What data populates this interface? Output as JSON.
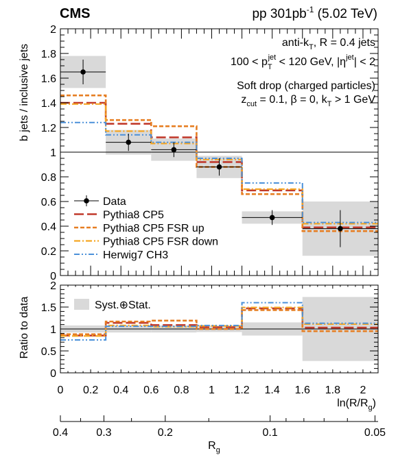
{
  "header": {
    "experiment": "CMS",
    "energy_prefix": "pp 301",
    "energy_unit": "pb",
    "energy_exp": "-1",
    "energy_suffix": " (5.02 TeV)"
  },
  "annotations": {
    "line1": "anti-k",
    "line1_sub": "T",
    "line1_rest": ", R = 0.4 jets",
    "line2_a": "100 < p",
    "line2_sub": "T",
    "line2_sup": "jet",
    "line2_b": " < 120 GeV, |η",
    "line2_sup2": "jet",
    "line2_c": "| < 2",
    "line3": "Soft drop (charged particles)",
    "line4_a": "z",
    "line4_sub": "cut",
    "line4_b": " = 0.1, β = 0, k",
    "line4_sub2": "T",
    "line4_c": " > 1 GeV"
  },
  "colors": {
    "data": "#000000",
    "pythia": "#c0392b",
    "fsr_up": "#e67e22",
    "fsr_down": "#f5a623",
    "herwig": "#4a90d9",
    "syst_band": "#d9d9d9"
  },
  "chart_data": [
    {
      "type": "step",
      "panel": "main",
      "ylabel": "b jets / inclusive jets",
      "ylim": [
        0,
        2
      ],
      "yticks": [
        "0",
        "0.2",
        "0.4",
        "0.6",
        "0.8",
        "1",
        "1.2",
        "1.4",
        "1.6",
        "1.8",
        "2"
      ],
      "bin_edges": [
        0,
        0.3,
        0.6,
        0.9,
        1.2,
        1.6,
        2.1
      ],
      "reference_line": 1,
      "series": [
        {
          "name": "Data",
          "x": [
            0.15,
            0.45,
            0.75,
            1.05,
            1.4,
            1.85
          ],
          "values": [
            1.65,
            1.08,
            1.02,
            0.88,
            0.47,
            0.38
          ],
          "stat_err": [
            0.1,
            0.07,
            0.06,
            0.07,
            0.06,
            0.15
          ],
          "syst_err": [
            0.13,
            0.1,
            0.09,
            0.09,
            0.05,
            0.22
          ]
        },
        {
          "name": "Pythia8 CP5",
          "values": [
            1.4,
            1.23,
            1.12,
            0.92,
            0.69,
            0.39
          ]
        },
        {
          "name": "Pythia8 CP5 FSR up",
          "values": [
            1.46,
            1.26,
            1.21,
            0.88,
            0.66,
            0.36
          ]
        },
        {
          "name": "Pythia8 CP5 FSR down",
          "values": [
            1.39,
            1.17,
            1.07,
            0.94,
            0.7,
            0.42
          ]
        },
        {
          "name": "Herwig7 CH3",
          "values": [
            1.24,
            1.14,
            1.08,
            0.95,
            0.75,
            0.43
          ]
        }
      ],
      "legend": [
        "Data",
        "Pythia8 CP5",
        "Pythia8 CP5 FSR up",
        "Pythia8 CP5 FSR down",
        "Herwig7 CH3"
      ]
    },
    {
      "type": "step",
      "panel": "ratio",
      "ylabel": "Ratio to data",
      "ylim": [
        0,
        2
      ],
      "yticks": [
        "0",
        "0.5",
        "1",
        "1.5",
        "2"
      ],
      "bin_edges": [
        0,
        0.3,
        0.6,
        0.9,
        1.2,
        1.6,
        2.1
      ],
      "reference_line": 1,
      "band_label": "Syst.⊕Stat.",
      "band_half_width": [
        0.08,
        0.08,
        0.08,
        0.07,
        0.15,
        0.73
      ],
      "series": [
        {
          "name": "Pythia8 CP5",
          "values": [
            0.85,
            1.14,
            1.09,
            1.04,
            1.47,
            1.03
          ]
        },
        {
          "name": "Pythia8 CP5 FSR up",
          "values": [
            0.88,
            1.17,
            1.19,
            1.0,
            1.43,
            0.95
          ]
        },
        {
          "name": "Pythia8 CP5 FSR down",
          "values": [
            0.84,
            1.08,
            1.05,
            1.07,
            1.49,
            1.11
          ]
        },
        {
          "name": "Herwig7 CH3",
          "values": [
            0.75,
            1.06,
            1.06,
            1.08,
            1.6,
            1.13
          ]
        }
      ],
      "xlabel": "ln(R/R",
      "xlabel_sub": "g",
      "xlabel_end": ")",
      "xlim": [
        0,
        2.1
      ],
      "xticks": [
        "0",
        "0.2",
        "0.4",
        "0.6",
        "0.8",
        "1",
        "1.2",
        "1.4",
        "1.6",
        "1.8",
        "2"
      ]
    },
    {
      "type": "axis",
      "panel": "secondary_x",
      "xlabel": "R",
      "xlabel_sub": "g",
      "ticks": [
        {
          "label": "0.4",
          "value": 0.4
        },
        {
          "label": "0.3",
          "value": 0.3
        },
        {
          "label": "0.2",
          "value": 0.2
        },
        {
          "label": "0.1",
          "value": 0.1
        },
        {
          "label": "0.05",
          "value": 0.05
        }
      ]
    }
  ]
}
